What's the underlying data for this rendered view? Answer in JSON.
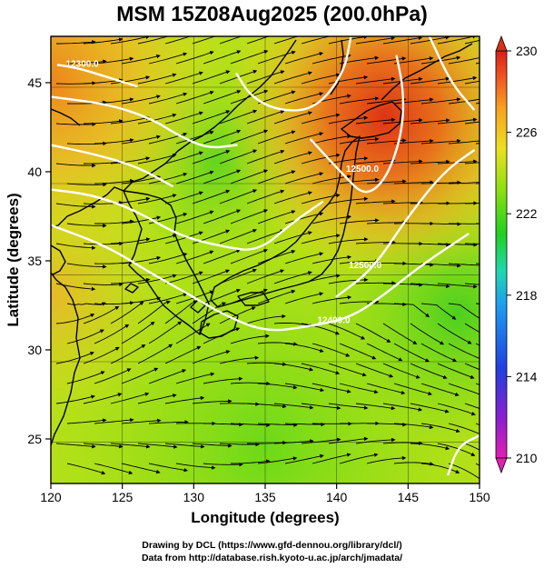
{
  "title": "MSM 15Z08Aug2025 (200.0hPa)",
  "x_axis": {
    "label": "Longitude (degrees)",
    "range": [
      120,
      150
    ],
    "ticks": [
      120,
      125,
      130,
      135,
      140,
      145,
      150
    ]
  },
  "y_axis": {
    "label": "Latitude  (degrees)",
    "range": [
      22.5,
      47.6
    ],
    "ticks": [
      25,
      30,
      35,
      40,
      45
    ]
  },
  "colorbar": {
    "range": [
      210,
      230
    ],
    "ticks": [
      210,
      214,
      218,
      222,
      226,
      230
    ],
    "colors": [
      "#e020b0",
      "#8a1fd0",
      "#2040e0",
      "#1ea0f0",
      "#20d8b0",
      "#20d020",
      "#8ee010",
      "#ece020",
      "#f8a020",
      "#f05020",
      "#d82018"
    ]
  },
  "contours": [
    {
      "label": "12300.0",
      "points": [
        [
          120.5,
          46.0
        ],
        [
          122,
          45.8
        ],
        [
          124,
          45.3
        ],
        [
          126,
          44.8
        ]
      ],
      "label_at": [
        122.2,
        45.9
      ]
    },
    {
      "label": "",
      "points": [
        [
          120,
          44.2
        ],
        [
          124,
          43.8
        ],
        [
          127,
          43.0
        ],
        [
          129,
          42.0
        ],
        [
          131,
          41.3
        ],
        [
          133,
          41.5
        ]
      ],
      "label_at": null
    },
    {
      "label": "",
      "points": [
        [
          120,
          41.5
        ],
        [
          123,
          41.0
        ],
        [
          126,
          40.3
        ],
        [
          128.5,
          39.2
        ]
      ],
      "label_at": null
    },
    {
      "label": "12400.0",
      "points": [
        [
          120,
          39.0
        ],
        [
          123,
          38.7
        ],
        [
          126,
          37.8
        ],
        [
          129,
          36.4
        ],
        [
          132,
          35.8
        ],
        [
          134.5,
          35.5
        ],
        [
          137,
          37.2
        ],
        [
          139,
          38.3
        ]
      ],
      "label_at": null
    },
    {
      "label": "",
      "points": [
        [
          133,
          45.5
        ],
        [
          134,
          44.2
        ],
        [
          136,
          43.4
        ],
        [
          138.5,
          43.5
        ],
        [
          140.5,
          45.5
        ],
        [
          141,
          47.6
        ]
      ],
      "label_at": null
    },
    {
      "label": "12500.0",
      "points": [
        [
          138.2,
          41.8
        ],
        [
          140.5,
          39.8
        ],
        [
          142,
          38.6
        ],
        [
          143.5,
          39.6
        ],
        [
          144.6,
          42.2
        ],
        [
          144.7,
          44.5
        ],
        [
          144.2,
          46.5
        ]
      ],
      "label_at": [
        141.8,
        40.0
      ]
    },
    {
      "label": "12400.0",
      "points": [
        [
          120,
          37.0
        ],
        [
          124,
          35.8
        ],
        [
          127,
          34.3
        ],
        [
          129.5,
          33.2
        ],
        [
          132,
          32.0
        ],
        [
          135,
          31.0
        ],
        [
          138,
          31.3
        ],
        [
          141,
          31.8
        ],
        [
          143.5,
          33.2
        ],
        [
          146,
          34.8
        ],
        [
          149.2,
          36.5
        ]
      ],
      "label_at": [
        139.8,
        31.5
      ]
    },
    {
      "label": "12500.0",
      "points": [
        [
          140,
          33.0
        ],
        [
          142.5,
          34.5
        ],
        [
          145,
          37.5
        ],
        [
          147.5,
          40.0
        ],
        [
          149.6,
          41.2
        ]
      ],
      "label_at": [
        142.0,
        34.6
      ]
    },
    {
      "label": "",
      "points": [
        [
          146.5,
          47.6
        ],
        [
          148,
          45.0
        ],
        [
          149.6,
          43.5
        ]
      ],
      "label_at": null
    },
    {
      "label": "",
      "points": [
        [
          147.8,
          23.0
        ],
        [
          148.5,
          24.6
        ],
        [
          150,
          25.2
        ]
      ],
      "label_at": null
    }
  ],
  "credit": {
    "line1": "Drawing by DCL (https://www.gfd-dennou.org/library/dcl/)",
    "line2": "Data from http://database.rish.kyoto-u.ac.jp/arch/jmadata/"
  }
}
